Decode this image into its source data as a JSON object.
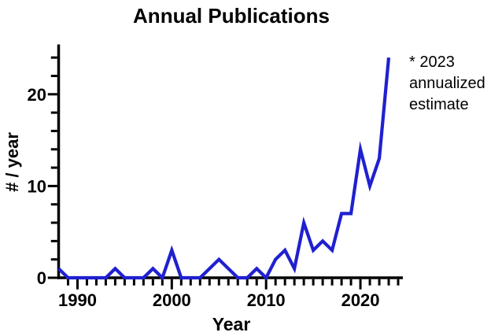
{
  "title": "Annual Publications",
  "annotation": {
    "text": "* 2023\nannualized\nestimate"
  },
  "chart_data": {
    "type": "line",
    "title": "Annual Publications",
    "xlabel": "Year",
    "ylabel": "# / year",
    "x": [
      1988,
      1989,
      1990,
      1991,
      1992,
      1993,
      1994,
      1995,
      1996,
      1997,
      1998,
      1999,
      2000,
      2001,
      2002,
      2003,
      2004,
      2005,
      2006,
      2007,
      2008,
      2009,
      2010,
      2011,
      2012,
      2013,
      2014,
      2015,
      2016,
      2017,
      2018,
      2019,
      2020,
      2021,
      2022,
      2023
    ],
    "values": [
      1,
      0,
      0,
      0,
      0,
      0,
      1,
      0,
      0,
      0,
      1,
      0,
      3,
      0,
      0,
      0,
      1,
      2,
      1,
      0,
      0,
      1,
      0,
      2,
      3,
      1,
      6,
      3,
      4,
      3,
      7,
      7,
      14,
      10,
      13,
      24
    ],
    "note": "* 2023 annualized estimate",
    "xlim": [
      1988,
      2024.5
    ],
    "ylim": [
      0,
      25.3
    ],
    "x_major_ticks": [
      1990,
      2000,
      2010,
      2020
    ],
    "x_minor_tick_step": 1,
    "y_major_ticks": [
      0,
      10,
      20
    ],
    "y_minor_tick_step": 2,
    "line_color": "#2020d0",
    "axis_color": "#000000",
    "grid": false,
    "legend_position": "none"
  }
}
